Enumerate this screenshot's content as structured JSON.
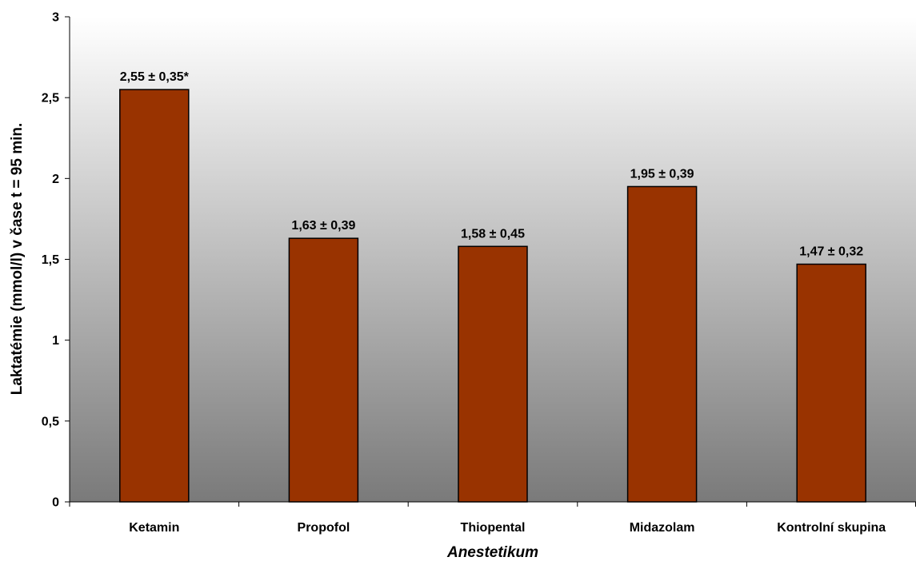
{
  "colors": {
    "bar": "#993300",
    "bar_stroke": "#000000",
    "plot_bg_top": "#ffffff",
    "plot_bg_bottom": "#7a7a7a",
    "axis": "#000000"
  },
  "chart_data": {
    "type": "bar",
    "categories": [
      "Ketamin",
      "Propofol",
      "Thiopental",
      "Midazolam",
      "Kontrolní skupina"
    ],
    "series": [
      {
        "values": [
          2.55,
          1.63,
          1.58,
          1.95,
          1.47
        ],
        "labels": [
          "2,55 ± 0,35*",
          "1,63 ± 0,39",
          "1,58 ± 0,45",
          "1,95 ± 0,39",
          "1,47 ± 0,32"
        ]
      }
    ],
    "ylim": [
      0,
      3
    ],
    "yticks": [
      0,
      0.5,
      1,
      1.5,
      2,
      2.5,
      3
    ],
    "ytick_labels": [
      "0",
      "0,5",
      "1",
      "1,5",
      "2",
      "2,5",
      "3"
    ],
    "xlabel": "Anestetikum",
    "ylabel": "Laktatémie (mmol/l) v čase t = 95 min.",
    "grid": false,
    "legend": "none"
  }
}
